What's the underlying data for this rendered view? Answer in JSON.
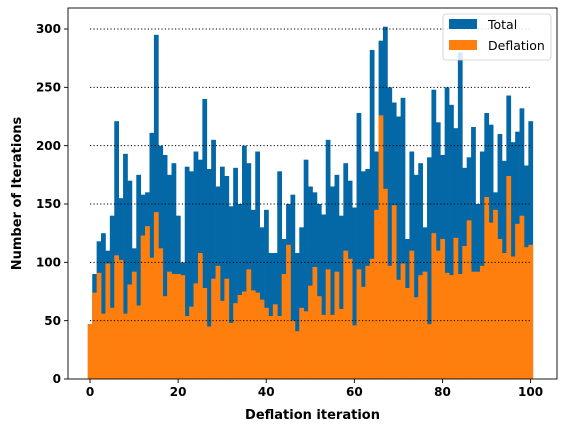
{
  "chart_data": {
    "type": "bar",
    "xlabel": "Deflation iteration",
    "ylabel": "Number of Iterations",
    "xlim": [
      -5,
      106
    ],
    "ylim": [
      0,
      318
    ],
    "xticks": [
      0,
      20,
      40,
      60,
      80,
      100
    ],
    "yticks": [
      0,
      50,
      100,
      150,
      200,
      250,
      300
    ],
    "grid": "horizontal dotted lines at y = 50, 100, 150, 200, 250, 300",
    "legend_position": "top-right",
    "x": [
      0,
      1,
      2,
      3,
      4,
      5,
      6,
      7,
      8,
      9,
      10,
      11,
      12,
      13,
      14,
      15,
      16,
      17,
      18,
      19,
      20,
      21,
      22,
      23,
      24,
      25,
      26,
      27,
      28,
      29,
      30,
      31,
      32,
      33,
      34,
      35,
      36,
      37,
      38,
      39,
      40,
      41,
      42,
      43,
      44,
      45,
      46,
      47,
      48,
      49,
      50,
      51,
      52,
      53,
      54,
      55,
      56,
      57,
      58,
      59,
      60,
      61,
      62,
      63,
      64,
      65,
      66,
      67,
      68,
      69,
      70,
      71,
      72,
      73,
      74,
      75,
      76,
      77,
      78,
      79,
      80,
      81,
      82,
      83,
      84,
      85,
      86,
      87,
      88,
      89,
      90,
      91,
      92,
      93,
      94,
      95,
      96,
      97,
      98,
      99,
      100
    ],
    "series": [
      {
        "name": "Total",
        "color": "#0468a7",
        "values": [
          47,
          90,
          118,
          125,
          110,
          140,
          221,
          155,
          193,
          170,
          112,
          175,
          158,
          160,
          211,
          295,
          200,
          192,
          175,
          185,
          140,
          100,
          182,
          178,
          195,
          188,
          240,
          180,
          205,
          165,
          182,
          174,
          148,
          181,
          150,
          200,
          185,
          145,
          195,
          130,
          145,
          108,
          108,
          178,
          120,
          150,
          158,
          108,
          130,
          188,
          165,
          160,
          150,
          141,
          205,
          165,
          175,
          140,
          185,
          170,
          147,
          228,
          178,
          180,
          282,
          195,
          290,
          302,
          250,
          237,
          225,
          241,
          120,
          195,
          175,
          185,
          130,
          190,
          248,
          220,
          192,
          250,
          235,
          215,
          280,
          181,
          190,
          216,
          150,
          195,
          228,
          218,
          160,
          210,
          187,
          243,
          203,
          212,
          232,
          183,
          221
        ]
      },
      {
        "name": "Deflation",
        "color": "#ff7f0e",
        "values": [
          47,
          74,
          91,
          56,
          99,
          61,
          106,
          102,
          56,
          81,
          92,
          63,
          123,
          131,
          104,
          143,
          112,
          71,
          92,
          90,
          90,
          89,
          54,
          62,
          82,
          108,
          78,
          45,
          86,
          97,
          67,
          86,
          48,
          65,
          72,
          75,
          94,
          76,
          74,
          68,
          61,
          54,
          64,
          54,
          90,
          115,
          50,
          41,
          61,
          58,
          80,
          96,
          71,
          55,
          94,
          55,
          92,
          60,
          110,
          103,
          46,
          94,
          79,
          97,
          103,
          145,
          226,
          163,
          97,
          149,
          85,
          99,
          78,
          110,
          70,
          89,
          92,
          47,
          125,
          110,
          120,
          91,
          89,
          121,
          90,
          114,
          136,
          92,
          92,
          97,
          156,
          134,
          145,
          120,
          108,
          174,
          105,
          133,
          140,
          113,
          115
        ]
      }
    ]
  }
}
